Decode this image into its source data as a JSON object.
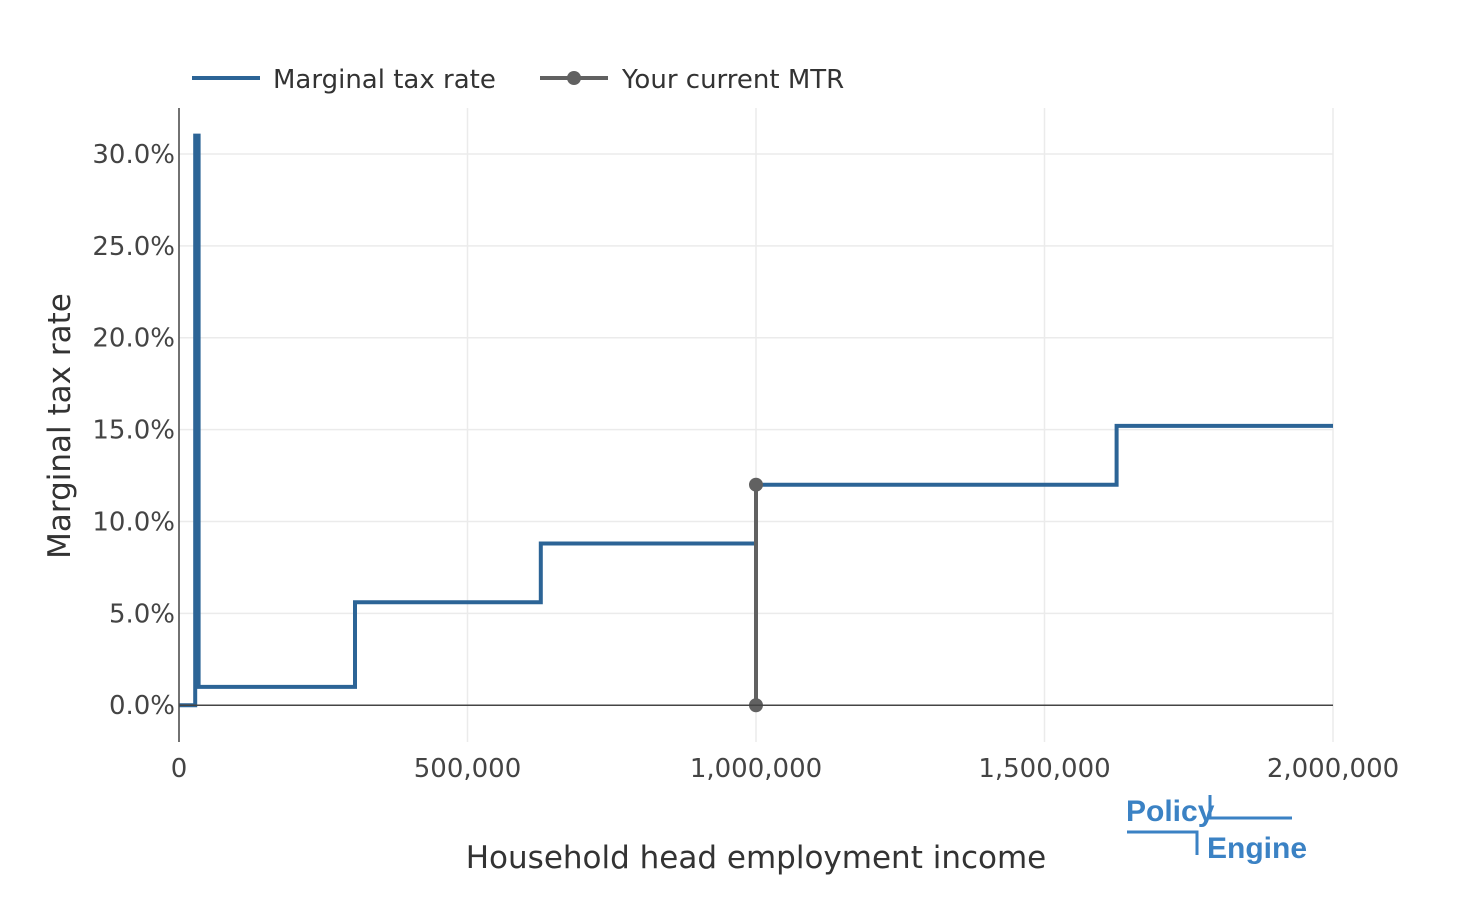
{
  "chart_data": {
    "type": "line",
    "line_shape": "step",
    "title": "",
    "xlabel": "Household head employment income",
    "ylabel": "Marginal tax rate",
    "xlim": [
      0,
      2000000
    ],
    "ylim": [
      -2.0,
      32.5
    ],
    "x_ticks": [
      0,
      500000,
      1000000,
      1500000,
      2000000
    ],
    "x_tick_labels": [
      "0",
      "500,000",
      "1,000,000",
      "1,500,000",
      "2,000,000"
    ],
    "y_ticks": [
      0,
      5,
      10,
      15,
      20,
      25,
      30
    ],
    "y_tick_labels": [
      "0.0%",
      "5.0%",
      "10.0%",
      "15.0%",
      "20.0%",
      "25.0%",
      "30.0%"
    ],
    "grid": true,
    "legend_placement": "top-left, horizontal",
    "series": [
      {
        "name": "Marginal tax rate",
        "color": "#2c6496",
        "x": [
          0,
          28000,
          28000,
          34000,
          34000,
          305000,
          305000,
          627000,
          627000,
          1000000,
          1000000,
          1625000,
          1625000,
          2000000
        ],
        "y": [
          0,
          0,
          31.0,
          31.0,
          1.0,
          1.0,
          5.6,
          5.6,
          8.8,
          8.8,
          12.0,
          12.0,
          15.2,
          15.2
        ]
      },
      {
        "name": "Your current MTR",
        "color": "#616161",
        "x": [
          1000000,
          1000000
        ],
        "y": [
          0,
          12.0
        ]
      }
    ]
  },
  "logo": {
    "word1": "Policy",
    "word2": "Engine",
    "color": "#3b82c4"
  },
  "colors": {
    "grid": "#ebebeb",
    "axis": "#444444"
  }
}
